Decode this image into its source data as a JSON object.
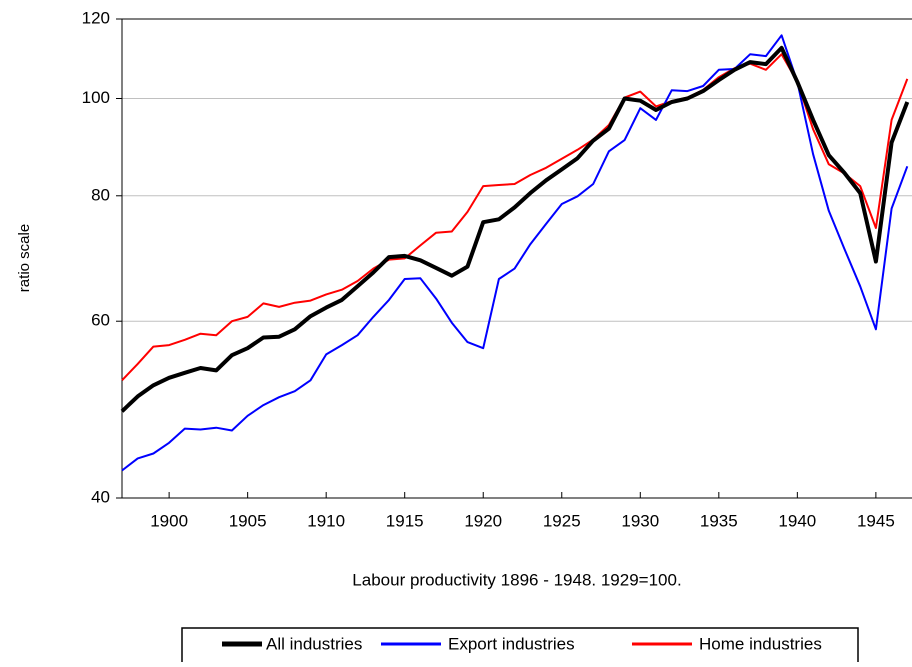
{
  "chart_data": {
    "type": "line",
    "y_label": "ratio scale",
    "x_label": "Labour productivity 1896 - 1948. 1929=100.",
    "yscale": "log",
    "grid": true,
    "legend": "bottom",
    "x": [
      1897,
      1898,
      1899,
      1900,
      1901,
      1902,
      1903,
      1904,
      1905,
      1906,
      1907,
      1908,
      1909,
      1910,
      1911,
      1912,
      1913,
      1914,
      1915,
      1916,
      1917,
      1918,
      1919,
      1920,
      1921,
      1922,
      1923,
      1924,
      1925,
      1926,
      1927,
      1928,
      1929,
      1930,
      1931,
      1932,
      1933,
      1934,
      1935,
      1936,
      1937,
      1938,
      1939,
      1940,
      1941,
      1942,
      1943,
      1944,
      1945,
      1946,
      1947
    ],
    "series": [
      {
        "name": "All industries",
        "color": "#000000",
        "width": 4,
        "values": [
          48.8,
          50.5,
          51.8,
          52.7,
          53.3,
          53.9,
          53.6,
          55.5,
          56.4,
          57.8,
          57.9,
          58.9,
          60.7,
          61.9,
          63.0,
          65.0,
          67.1,
          69.5,
          69.7,
          69.0,
          67.8,
          66.6,
          68.0,
          75.3,
          75.8,
          77.9,
          80.5,
          82.9,
          85.0,
          87.2,
          90.8,
          93.3,
          100,
          99.5,
          97.4,
          99.2,
          100,
          101.7,
          104.3,
          106.8,
          108.7,
          108.2,
          112.3,
          103.9,
          95.2,
          87.8,
          84.3,
          80.5,
          68.8,
          90.4,
          99.2
        ]
      },
      {
        "name": "Export industries",
        "color": "#0000ff",
        "width": 2,
        "values": [
          42.6,
          43.8,
          44.3,
          45.4,
          46.9,
          46.8,
          47.0,
          46.7,
          48.3,
          49.5,
          50.4,
          51.1,
          52.4,
          55.6,
          56.8,
          58.1,
          60.6,
          63.0,
          66.1,
          66.2,
          63.2,
          59.8,
          57.2,
          56.4,
          66.1,
          67.7,
          71.6,
          75.0,
          78.5,
          79.9,
          82.2,
          88.6,
          90.9,
          97.8,
          95.2,
          101.9,
          101.7,
          102.9,
          106.8,
          107.0,
          110.7,
          110.2,
          115.6,
          103.9,
          88.0,
          77.3,
          70.8,
          65.0,
          58.9,
          77.7,
          85.6
        ]
      },
      {
        "name": "Home industries",
        "color": "#ff0000",
        "width": 2,
        "values": [
          52.4,
          54.4,
          56.6,
          56.8,
          57.5,
          58.3,
          58.1,
          60.0,
          60.6,
          62.5,
          62.0,
          62.6,
          62.9,
          63.8,
          64.5,
          65.8,
          67.7,
          69.1,
          69.3,
          71.4,
          73.5,
          73.7,
          77.1,
          81.8,
          82.0,
          82.2,
          83.9,
          85.3,
          87.1,
          88.9,
          91.0,
          94.1,
          100.2,
          101.6,
          98.2,
          99.4,
          100.2,
          102.0,
          105.0,
          107.2,
          108.3,
          106.8,
          110.7,
          103.9,
          93.2,
          86.0,
          84.2,
          81.8,
          74.3,
          95.2,
          104.6
        ]
      }
    ],
    "xlim": [
      1897,
      1947.3
    ],
    "xticks": [
      1900,
      1905,
      1910,
      1915,
      1920,
      1925,
      1930,
      1935,
      1940,
      1945
    ],
    "ylim": [
      40,
      120
    ],
    "yticks": [
      40,
      60,
      80,
      100,
      120
    ]
  }
}
